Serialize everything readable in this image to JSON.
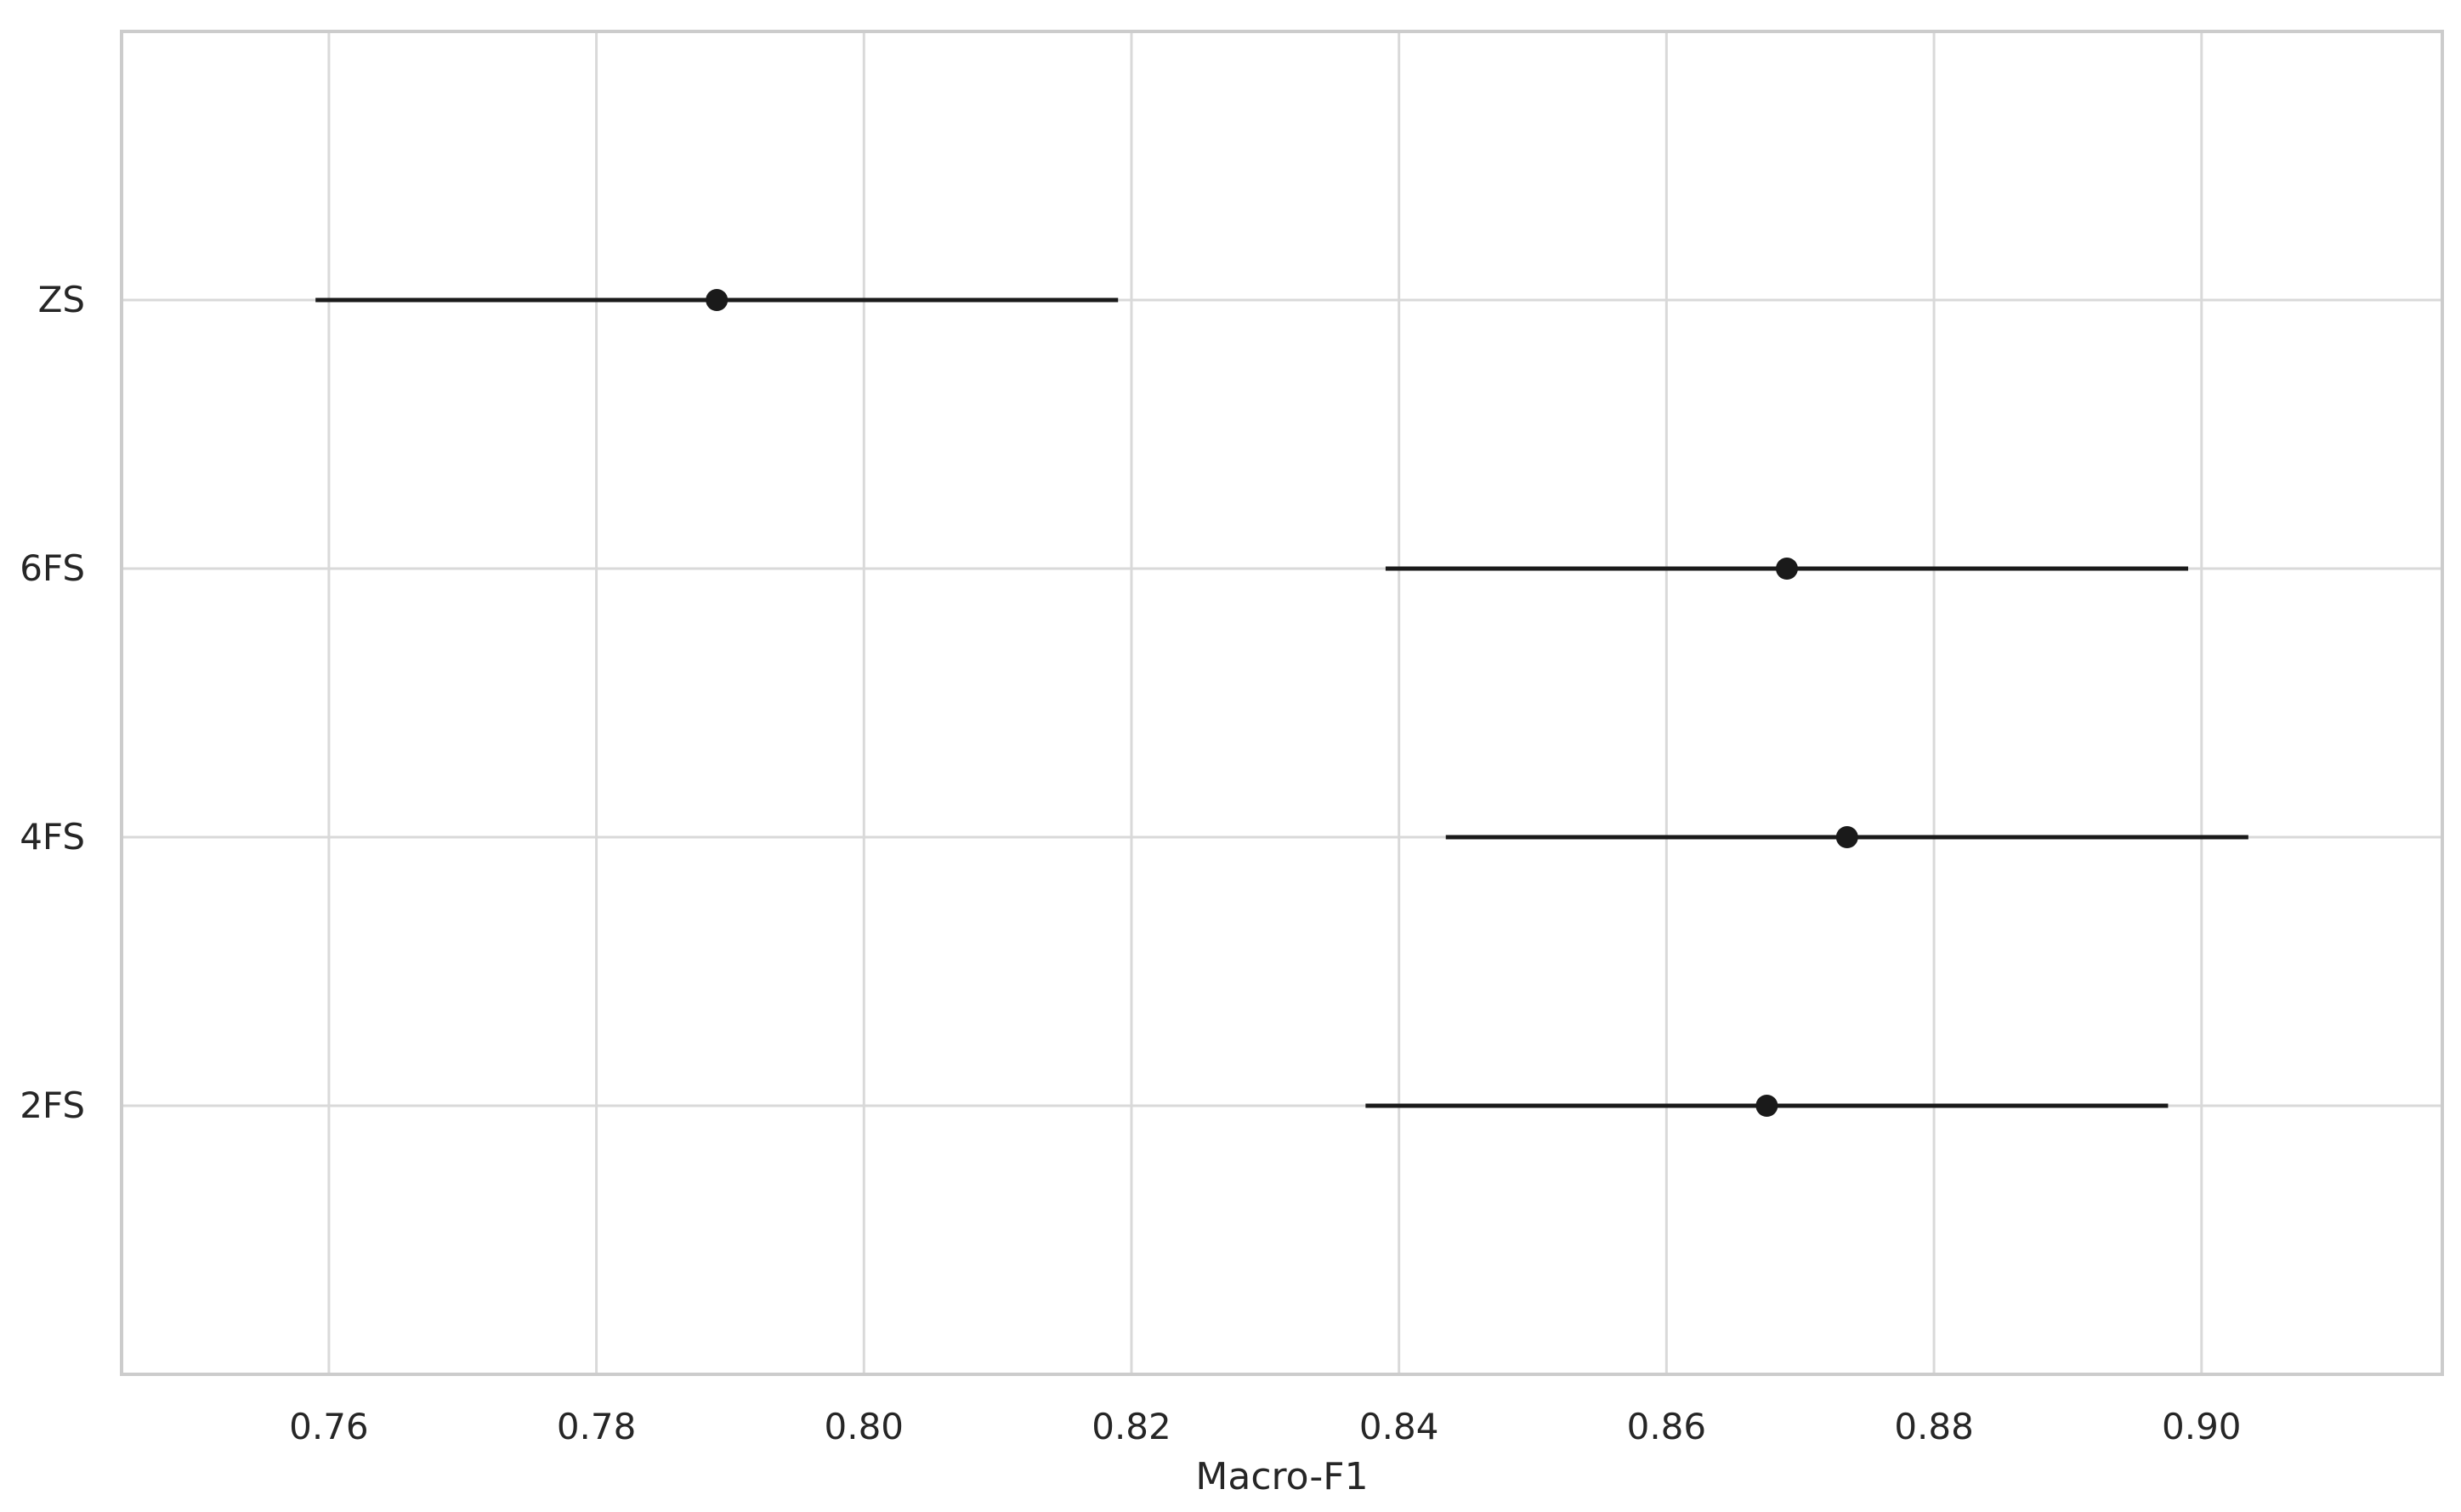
{
  "chart_data": {
    "type": "scatter",
    "subtype": "point-with-error-bars",
    "orientation": "horizontal",
    "title": "",
    "xlabel": "Macro-F1",
    "ylabel": "",
    "xlim": [
      0.7445,
      0.918
    ],
    "xticks": [
      0.76,
      0.78,
      0.8,
      0.82,
      0.84,
      0.86,
      0.88,
      0.9
    ],
    "xtick_labels": [
      "0.76",
      "0.78",
      "0.80",
      "0.82",
      "0.84",
      "0.86",
      "0.88",
      "0.90"
    ],
    "categories": [
      "ZS",
      "6FS",
      "4FS",
      "2FS"
    ],
    "points": [
      {
        "label": "ZS",
        "value": 0.789,
        "ci_low": 0.759,
        "ci_high": 0.819
      },
      {
        "label": "6FS",
        "value": 0.869,
        "ci_low": 0.839,
        "ci_high": 0.899
      },
      {
        "label": "4FS",
        "value": 0.8735,
        "ci_low": 0.8435,
        "ci_high": 0.9035
      },
      {
        "label": "2FS",
        "value": 0.8675,
        "ci_low": 0.8375,
        "ci_high": 0.8975
      }
    ],
    "grid": true,
    "legend": "none",
    "colors": {
      "marker": "#1a1a1a",
      "errorbar": "#1a1a1a",
      "grid": "#d9d9d9",
      "frame": "#cccccc",
      "text": "#262626"
    }
  }
}
